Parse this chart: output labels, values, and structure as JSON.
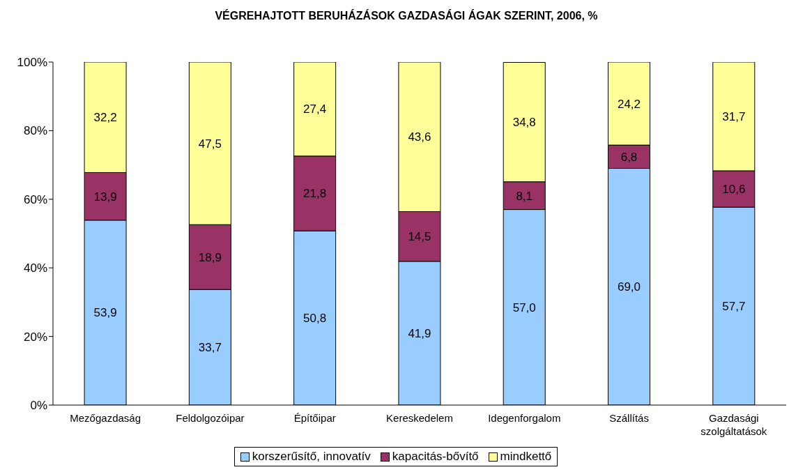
{
  "chart_data": {
    "type": "bar",
    "title": "VÉGREHAJTOTT BERUHÁZÁSOK GAZDASÁGI ÁGAK SZERINT, 2006, %",
    "stacked": true,
    "categories": [
      "Mezőgazdaság",
      "Feldolgozóipar",
      "Építőipar",
      "Kereskedelem",
      "Idegenforgalom",
      "Szállítás",
      "Gazdasági szolgáltatások"
    ],
    "series": [
      {
        "name": "korszerűsítő, innovatív",
        "color": "#99ccff",
        "values": [
          53.9,
          33.7,
          50.8,
          41.9,
          57.0,
          69.0,
          57.7
        ],
        "value_labels": [
          "53,9",
          "33,7",
          "50,8",
          "41,9",
          "57,0",
          "69,0",
          "57,7"
        ]
      },
      {
        "name": "kapacitás-bővítő",
        "color": "#993366",
        "values": [
          13.9,
          18.9,
          21.8,
          14.5,
          8.1,
          6.8,
          10.6
        ],
        "value_labels": [
          "13,9",
          "18,9",
          "21,8",
          "14,5",
          "8,1",
          "6,8",
          "10,6"
        ]
      },
      {
        "name": "mindkettő",
        "color": "#ffff99",
        "values": [
          32.2,
          47.5,
          27.4,
          43.6,
          34.8,
          24.2,
          31.7
        ],
        "value_labels": [
          "32,2",
          "47,5",
          "27,4",
          "43,6",
          "34,8",
          "24,2",
          "31,7"
        ]
      }
    ],
    "ylim": [
      0,
      100
    ],
    "yticks": [
      {
        "value": 0,
        "label": "0%"
      },
      {
        "value": 20,
        "label": "20%"
      },
      {
        "value": 40,
        "label": "40%"
      },
      {
        "value": 60,
        "label": "60%"
      },
      {
        "value": 80,
        "label": "80%"
      },
      {
        "value": 100,
        "label": "100%"
      }
    ],
    "grid": false,
    "legend": "bottom"
  }
}
